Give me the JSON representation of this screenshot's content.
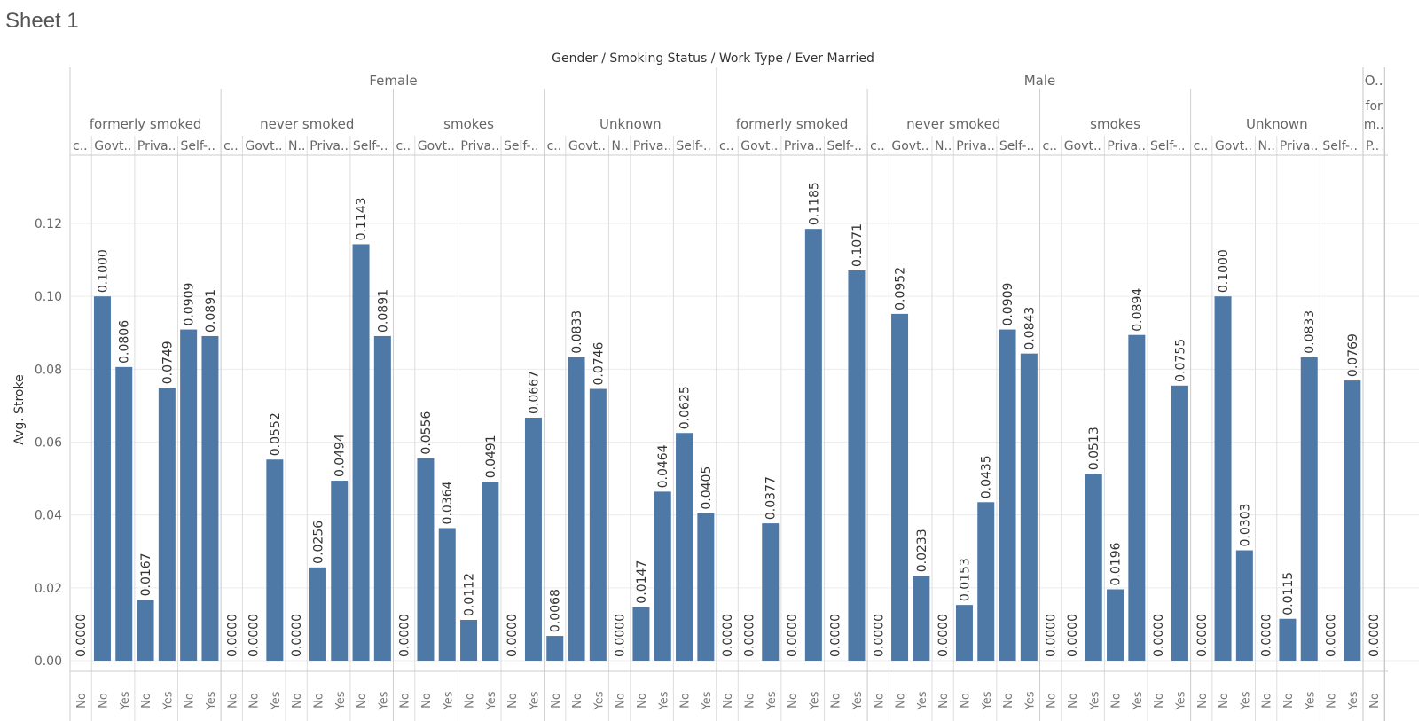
{
  "sheet_title": "Sheet 1",
  "chart_data": {
    "type": "bar",
    "title": "Gender / Smoking Status / Work Type / Ever Married",
    "ylabel": "Avg. Stroke",
    "ylim": [
      0,
      0.135
    ],
    "yticks": [
      0.0,
      0.02,
      0.04,
      0.06,
      0.08,
      0.1,
      0.12
    ],
    "grid": true,
    "bar_color": "#4e79a7",
    "groups": [
      {
        "gender": "Female",
        "smoking": [
          {
            "status": "formerly smoked",
            "work": [
              {
                "label": "c..",
                "bars": [
                  {
                    "married": "No",
                    "value": 0.0
                  }
                ]
              },
              {
                "label": "Govt..",
                "bars": [
                  {
                    "married": "No",
                    "value": 0.1
                  },
                  {
                    "married": "Yes",
                    "value": 0.0806
                  }
                ]
              },
              {
                "label": "Priva..",
                "bars": [
                  {
                    "married": "No",
                    "value": 0.0167
                  },
                  {
                    "married": "Yes",
                    "value": 0.0749
                  }
                ]
              },
              {
                "label": "Self-..",
                "bars": [
                  {
                    "married": "No",
                    "value": 0.0909
                  },
                  {
                    "married": "Yes",
                    "value": 0.0891
                  }
                ]
              }
            ]
          },
          {
            "status": "never smoked",
            "work": [
              {
                "label": "c..",
                "bars": [
                  {
                    "married": "No",
                    "value": 0.0
                  }
                ]
              },
              {
                "label": "Govt..",
                "bars": [
                  {
                    "married": "No",
                    "value": 0.0
                  },
                  {
                    "married": "Yes",
                    "value": 0.0552
                  }
                ]
              },
              {
                "label": "N..",
                "bars": [
                  {
                    "married": "No",
                    "value": 0.0
                  }
                ]
              },
              {
                "label": "Priva..",
                "bars": [
                  {
                    "married": "No",
                    "value": 0.0256
                  },
                  {
                    "married": "Yes",
                    "value": 0.0494
                  }
                ]
              },
              {
                "label": "Self-..",
                "bars": [
                  {
                    "married": "No",
                    "value": 0.1143
                  },
                  {
                    "married": "Yes",
                    "value": 0.0891
                  }
                ]
              }
            ]
          },
          {
            "status": "smokes",
            "work": [
              {
                "label": "c..",
                "bars": [
                  {
                    "married": "No",
                    "value": 0.0
                  }
                ]
              },
              {
                "label": "Govt..",
                "bars": [
                  {
                    "married": "No",
                    "value": 0.0556
                  },
                  {
                    "married": "Yes",
                    "value": 0.0364
                  }
                ]
              },
              {
                "label": "Priva..",
                "bars": [
                  {
                    "married": "No",
                    "value": 0.0112
                  },
                  {
                    "married": "Yes",
                    "value": 0.0491
                  }
                ]
              },
              {
                "label": "Self-..",
                "bars": [
                  {
                    "married": "No",
                    "value": 0.0
                  },
                  {
                    "married": "Yes",
                    "value": 0.0667
                  }
                ]
              }
            ]
          },
          {
            "status": "Unknown",
            "work": [
              {
                "label": "c..",
                "bars": [
                  {
                    "married": "No",
                    "value": 0.0068
                  }
                ]
              },
              {
                "label": "Govt..",
                "bars": [
                  {
                    "married": "No",
                    "value": 0.0833
                  },
                  {
                    "married": "Yes",
                    "value": 0.0746
                  }
                ]
              },
              {
                "label": "N..",
                "bars": [
                  {
                    "married": "No",
                    "value": 0.0
                  }
                ]
              },
              {
                "label": "Priva..",
                "bars": [
                  {
                    "married": "No",
                    "value": 0.0147
                  },
                  {
                    "married": "Yes",
                    "value": 0.0464
                  }
                ]
              },
              {
                "label": "Self-..",
                "bars": [
                  {
                    "married": "No",
                    "value": 0.0625
                  },
                  {
                    "married": "Yes",
                    "value": 0.0405
                  }
                ]
              }
            ]
          }
        ]
      },
      {
        "gender": "Male",
        "smoking": [
          {
            "status": "formerly smoked",
            "work": [
              {
                "label": "c..",
                "bars": [
                  {
                    "married": "No",
                    "value": 0.0
                  }
                ]
              },
              {
                "label": "Govt..",
                "bars": [
                  {
                    "married": "No",
                    "value": 0.0
                  },
                  {
                    "married": "Yes",
                    "value": 0.0377
                  }
                ]
              },
              {
                "label": "Priva..",
                "bars": [
                  {
                    "married": "No",
                    "value": 0.0
                  },
                  {
                    "married": "Yes",
                    "value": 0.1185
                  }
                ]
              },
              {
                "label": "Self-..",
                "bars": [
                  {
                    "married": "No",
                    "value": 0.0
                  },
                  {
                    "married": "Yes",
                    "value": 0.1071
                  }
                ]
              }
            ]
          },
          {
            "status": "never smoked",
            "work": [
              {
                "label": "c..",
                "bars": [
                  {
                    "married": "No",
                    "value": 0.0
                  }
                ]
              },
              {
                "label": "Govt..",
                "bars": [
                  {
                    "married": "No",
                    "value": 0.0952
                  },
                  {
                    "married": "Yes",
                    "value": 0.0233
                  }
                ]
              },
              {
                "label": "N..",
                "bars": [
                  {
                    "married": "No",
                    "value": 0.0
                  }
                ]
              },
              {
                "label": "Priva..",
                "bars": [
                  {
                    "married": "No",
                    "value": 0.0153
                  },
                  {
                    "married": "Yes",
                    "value": 0.0435
                  }
                ]
              },
              {
                "label": "Self-..",
                "bars": [
                  {
                    "married": "No",
                    "value": 0.0909
                  },
                  {
                    "married": "Yes",
                    "value": 0.0843
                  }
                ]
              }
            ]
          },
          {
            "status": "smokes",
            "work": [
              {
                "label": "c..",
                "bars": [
                  {
                    "married": "No",
                    "value": 0.0
                  }
                ]
              },
              {
                "label": "Govt..",
                "bars": [
                  {
                    "married": "No",
                    "value": 0.0
                  },
                  {
                    "married": "Yes",
                    "value": 0.0513
                  }
                ]
              },
              {
                "label": "Priva..",
                "bars": [
                  {
                    "married": "No",
                    "value": 0.0196
                  },
                  {
                    "married": "Yes",
                    "value": 0.0894
                  }
                ]
              },
              {
                "label": "Self-..",
                "bars": [
                  {
                    "married": "No",
                    "value": 0.0
                  },
                  {
                    "married": "Yes",
                    "value": 0.0755
                  }
                ]
              }
            ]
          },
          {
            "status": "Unknown",
            "work": [
              {
                "label": "c..",
                "bars": [
                  {
                    "married": "No",
                    "value": 0.0
                  }
                ]
              },
              {
                "label": "Govt..",
                "bars": [
                  {
                    "married": "No",
                    "value": 0.1
                  },
                  {
                    "married": "Yes",
                    "value": 0.0303
                  }
                ]
              },
              {
                "label": "N..",
                "bars": [
                  {
                    "married": "No",
                    "value": 0.0
                  }
                ]
              },
              {
                "label": "Priva..",
                "bars": [
                  {
                    "married": "No",
                    "value": 0.0115
                  },
                  {
                    "married": "Yes",
                    "value": 0.0833
                  }
                ]
              },
              {
                "label": "Self-..",
                "bars": [
                  {
                    "married": "No",
                    "value": 0.0
                  },
                  {
                    "married": "Yes",
                    "value": 0.0769
                  }
                ]
              }
            ]
          }
        ]
      },
      {
        "gender": "O..",
        "smoking": [
          {
            "status": "for m..",
            "work": [
              {
                "label": "P..",
                "bars": [
                  {
                    "married": "No",
                    "value": 0.0
                  }
                ]
              }
            ]
          }
        ]
      }
    ]
  }
}
